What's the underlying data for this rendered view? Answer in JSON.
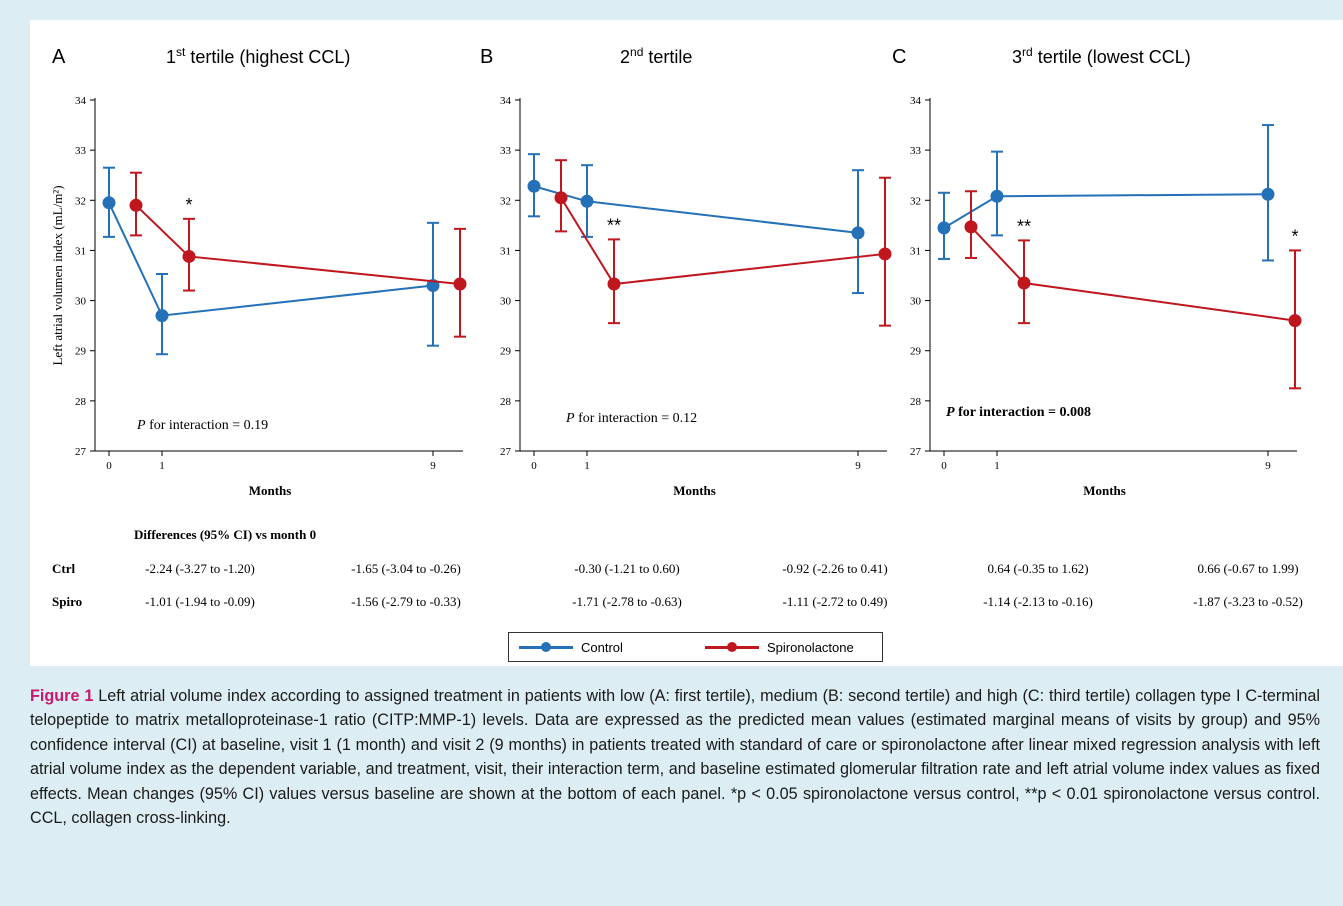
{
  "colors": {
    "control": "#2471b8",
    "spiro": "#c0161e",
    "caption_label": "#c8196e",
    "background": "#dcedf3"
  },
  "chart_data": [
    {
      "type": "line",
      "panel_letter": "A",
      "title_pre": "1",
      "title_sup": "st",
      "title_post": " tertile (highest CCL)",
      "xlabel": "Months",
      "ylabel": "Left atrial volumen index (mL/m²)",
      "x_ticks": [
        "0",
        "1",
        "9"
      ],
      "ylim": [
        27,
        34
      ],
      "y_ticks": [
        "27",
        "28",
        "29",
        "30",
        "31",
        "32",
        "33",
        "34"
      ],
      "series": [
        {
          "name": "Control",
          "points": [
            {
              "x": 0,
              "y": 31.95,
              "lo": 31.27,
              "hi": 32.65
            },
            {
              "x": 1,
              "y": 29.7,
              "lo": 28.93,
              "hi": 30.53
            },
            {
              "x": 9,
              "y": 30.3,
              "lo": 29.1,
              "hi": 31.55
            }
          ]
        },
        {
          "name": "Spironolactone",
          "points": [
            {
              "x": 0,
              "y": 31.9,
              "lo": 31.3,
              "hi": 32.55
            },
            {
              "x": 1,
              "y": 30.88,
              "lo": 30.2,
              "hi": 31.63
            },
            {
              "x": 9,
              "y": 30.33,
              "lo": 29.28,
              "hi": 31.43
            }
          ]
        }
      ],
      "annotations": [
        {
          "text": "*",
          "series": 1,
          "point": 1
        }
      ],
      "interaction_italic": "P",
      "interaction_rest": " for interaction = 0.19",
      "interaction_bold": false
    },
    {
      "type": "line",
      "panel_letter": "B",
      "title_pre": "2",
      "title_sup": "nd",
      "title_post": " tertile",
      "xlabel": "Months",
      "ylabel": "",
      "x_ticks": [
        "0",
        "1",
        "9"
      ],
      "ylim": [
        27,
        34
      ],
      "y_ticks": [
        "27",
        "28",
        "29",
        "30",
        "31",
        "32",
        "33",
        "34"
      ],
      "series": [
        {
          "name": "Control",
          "points": [
            {
              "x": 0,
              "y": 32.28,
              "lo": 31.68,
              "hi": 32.92
            },
            {
              "x": 1,
              "y": 31.98,
              "lo": 31.27,
              "hi": 32.7
            },
            {
              "x": 9,
              "y": 31.35,
              "lo": 30.15,
              "hi": 32.6
            }
          ]
        },
        {
          "name": "Spironolactone",
          "points": [
            {
              "x": 0,
              "y": 32.05,
              "lo": 31.38,
              "hi": 32.8
            },
            {
              "x": 1,
              "y": 30.33,
              "lo": 29.55,
              "hi": 31.22
            },
            {
              "x": 9,
              "y": 30.93,
              "lo": 29.5,
              "hi": 32.45
            }
          ]
        }
      ],
      "annotations": [
        {
          "text": "**",
          "series": 1,
          "point": 1
        }
      ],
      "interaction_italic": "P",
      "interaction_rest": " for interaction = 0.12",
      "interaction_bold": false
    },
    {
      "type": "line",
      "panel_letter": "C",
      "title_pre": "3",
      "title_sup": "rd",
      "title_post": " tertile (lowest CCL)",
      "xlabel": "Months",
      "ylabel": "",
      "x_ticks": [
        "0",
        "1",
        "9"
      ],
      "ylim": [
        27,
        34
      ],
      "y_ticks": [
        "27",
        "28",
        "29",
        "30",
        "31",
        "32",
        "33",
        "34"
      ],
      "series": [
        {
          "name": "Control",
          "points": [
            {
              "x": 0,
              "y": 31.45,
              "lo": 30.83,
              "hi": 32.15
            },
            {
              "x": 1,
              "y": 32.08,
              "lo": 31.3,
              "hi": 32.97
            },
            {
              "x": 9,
              "y": 32.12,
              "lo": 30.8,
              "hi": 33.5
            }
          ]
        },
        {
          "name": "Spironolactone",
          "points": [
            {
              "x": 0,
              "y": 31.47,
              "lo": 30.85,
              "hi": 32.18
            },
            {
              "x": 1,
              "y": 30.35,
              "lo": 29.55,
              "hi": 31.2
            },
            {
              "x": 9,
              "y": 29.6,
              "lo": 28.25,
              "hi": 31.0
            }
          ]
        }
      ],
      "annotations": [
        {
          "text": "**",
          "series": 1,
          "point": 1
        },
        {
          "text": "*",
          "series": 1,
          "point": 2
        }
      ],
      "interaction_italic": "P",
      "interaction_rest": " for interaction = 0.008",
      "interaction_bold": true
    }
  ],
  "diff_table": {
    "header": "Differences (95% CI) vs month 0",
    "rows": [
      {
        "label": "Ctrl",
        "values": [
          "-2.24 (-3.27 to -1.20)",
          "-1.65 (-3.04 to -0.26)",
          "-0.30 (-1.21 to 0.60)",
          "-0.92 (-2.26 to 0.41)",
          "0.64 (-0.35 to 1.62)",
          "0.66 (-0.67 to 1.99)"
        ]
      },
      {
        "label": "Spiro",
        "values": [
          "-1.01 (-1.94 to -0.09)",
          "-1.56 (-2.79 to -0.33)",
          "-1.71 (-2.78 to -0.63)",
          "-1.11 (-2.72 to 0.49)",
          "-1.14 (-2.13 to -0.16)",
          "-1.87 (-3.23 to -0.52)"
        ]
      }
    ]
  },
  "legend": {
    "control": "Control",
    "spiro": "Spironolactone"
  },
  "caption": {
    "label": "Figure 1",
    "text": " Left atrial volume index according to assigned treatment in patients with low (A: first tertile), medium (B: second tertile) and high (C: third tertile) collagen type I C-terminal telopeptide to matrix metalloproteinase-1 ratio (CITP:MMP-1) levels. Data are expressed as the predicted mean values (estimated marginal means of visits by group) and 95% confidence interval (CI) at baseline, visit 1 (1 month) and visit 2 (9 months) in patients treated with standard of care or spironolactone after linear mixed regression analysis with left atrial volume index as the dependent variable, and treatment, visit, their interaction term, and baseline estimated glomerular filtration rate and left atrial volume index values as fixed effects. Mean changes (95% CI) values versus baseline are shown at the bottom of each panel. *p < 0.05 spironolactone versus control, **p < 0.01 spironolactone versus control. CCL, collagen cross-linking."
  }
}
